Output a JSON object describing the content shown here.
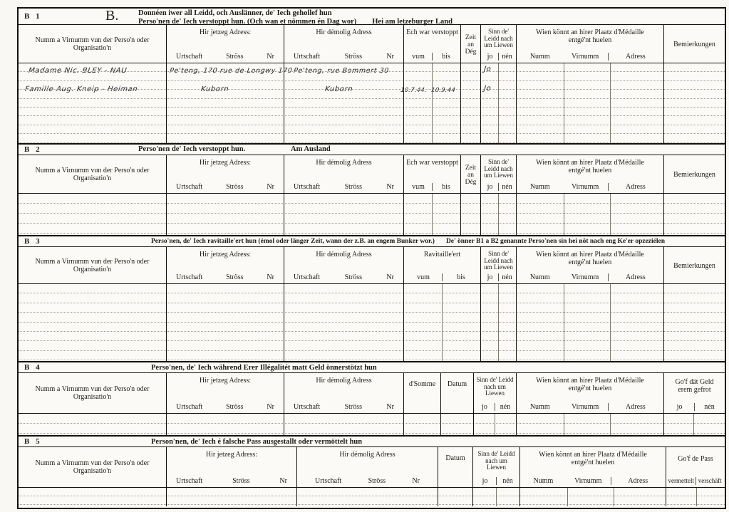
{
  "common": {
    "name_col": "Numm a Virnumm vun der Perso'n oder Organisatio'n",
    "jetzeg_title": "Hir jetzeg Adress:",
    "demolig_title": "Hir démolig Adress",
    "urtschaft": "Urtschaft",
    "stross": "Ströss",
    "nr": "Nr",
    "vum": "vum",
    "bis": "bis",
    "jo": "jo",
    "nen": "nén",
    "zeit_col": "Zeit an Dég",
    "sinn_col": "Sinn de' Leidd nach um Liewen",
    "medaille_title": "Wien könnt an hirer Plaatz d'Médaille entgé'nt huelen",
    "numm": "Numm",
    "virnumm": "Virnumm",
    "adress": "Adress",
    "bemierkungen": "Bemierkungen"
  },
  "b1": {
    "id": "B 1",
    "letter": "B.",
    "title1": "Donnéen iwer all Leidd, och Auslänner, de' Iech gehollef hun",
    "title2": "Perso'nen de' Iech verstoppt hun. (Och wan et nömmen én Dag wor)",
    "suffix": "Hei am letzeburger Land",
    "verstoppt_title": "Ech war verstoppt",
    "entries": [
      {
        "name": "Madame Nic. BLEY - NAU",
        "jetzeg": "Pe'teng, 170 rue de Longwy 170",
        "demolig": "Pe'teng, rue Bommert 30",
        "vum": "",
        "bis": "",
        "jo": "Jo"
      },
      {
        "name": "Famille Aug. Kneip - Heiman",
        "jetzeg": "Kuborn",
        "demolig": "Kuborn",
        "vum": "10.7.44.",
        "bis": "10.9.44",
        "jo": "Jo"
      }
    ]
  },
  "b2": {
    "id": "B 2",
    "title": "Perso'nen de' Iech verstoppt hun.",
    "suffix": "Am Ausland",
    "verstoppt_title": "Ech war verstoppt"
  },
  "b3": {
    "id": "B 3",
    "title": "Perso'nen, de' Iech ravitaille'ert hun (émol oder länger Zeit, wann der z.B. an engem Bunker wor.)",
    "suffix": "De' önner B1 a B2 genannte Perso'nen sin hei nöt nach eng Ke'er opzeziélen",
    "ravitailleert_title": "Ravitaille'ert"
  },
  "b4": {
    "id": "B 4",
    "title": "Perso'nen, de' Iech während Erer Illégalitét matt Geld önnerstötzt hun",
    "somme_col": "d'Somme",
    "datum_col": "Datum",
    "gof_title": "Go'f dät Geld erem gefrot"
  },
  "b5": {
    "id": "B 5",
    "title": "Person'nen, de' Iech é falsche Pass ausgestallt oder vermöttelt hun",
    "datum_col": "Datum",
    "gof_title": "Go'f de Pass",
    "vermettelt": "vermettelt",
    "verschaft": "verschäft"
  }
}
